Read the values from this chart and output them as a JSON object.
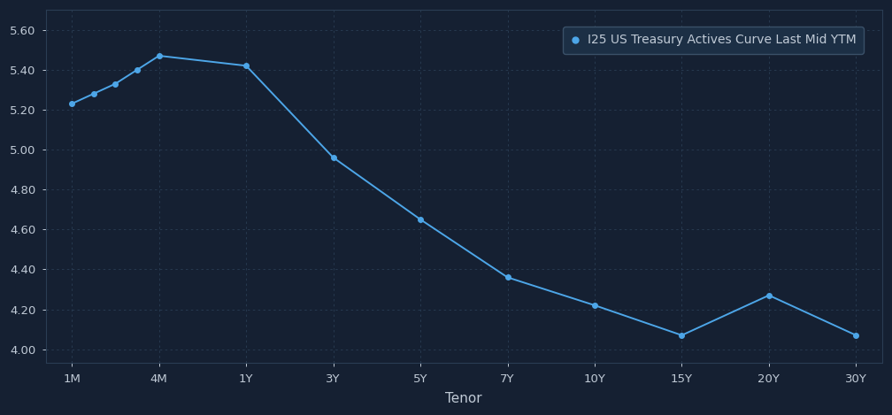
{
  "xtick_labels": [
    "1M",
    "4M",
    "1Y",
    "3Y",
    "5Y",
    "7Y",
    "10Y",
    "15Y",
    "20Y",
    "30Y"
  ],
  "xtick_positions": [
    0,
    1,
    2,
    3,
    4,
    5,
    6,
    7,
    8,
    9
  ],
  "series_x": [
    0,
    0.25,
    0.5,
    0.75,
    1.0,
    2.0,
    3.0,
    4.0,
    5.0,
    6.0,
    7.0,
    8.0,
    9.0
  ],
  "series_y": [
    5.23,
    5.28,
    5.33,
    5.4,
    5.47,
    5.42,
    4.96,
    4.65,
    4.36,
    4.22,
    4.07,
    4.27,
    4.07
  ],
  "yticks": [
    4.0,
    4.2,
    4.4,
    4.6,
    4.8,
    5.0,
    5.2,
    5.4,
    5.6
  ],
  "ylim": [
    3.93,
    5.7
  ],
  "xlim": [
    -0.3,
    9.3
  ],
  "xlabel": "Tenor",
  "legend_label": "I25 US Treasury Actives Curve Last Mid YTM",
  "line_color": "#4da6e8",
  "marker_color": "#4da6e8",
  "bg_color": "#152032",
  "plot_bg_color": "#152032",
  "grid_color": "#2a3d54",
  "text_color": "#c0cad6",
  "axis_color": "#2a3d54",
  "legend_bg": "#1c2f45",
  "legend_edge": "#3a5068"
}
